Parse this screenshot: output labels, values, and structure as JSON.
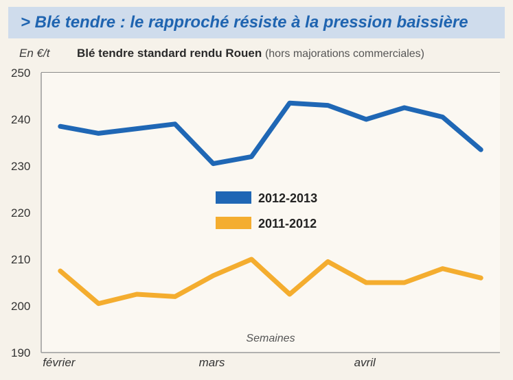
{
  "header": {
    "title": "> Blé tendre : le rapproché résiste à la pression baissière"
  },
  "unit": "En €/t",
  "subtitle_main": "Blé tendre standard rendu Rouen",
  "subtitle_note": "(hors majorations commerciales)",
  "chart_data": {
    "type": "line",
    "title": "Blé tendre standard rendu Rouen",
    "ylabel": "En €/t",
    "xlabel": "Semaines",
    "ylim": [
      190,
      250
    ],
    "yticks": [
      250,
      240,
      230,
      220,
      210,
      200,
      190
    ],
    "x": [
      1,
      2,
      3,
      4,
      5,
      6,
      7,
      8,
      9,
      10,
      11,
      12
    ],
    "xlim": [
      0.5,
      12.5
    ],
    "month_labels": [
      {
        "label": "février",
        "x": 1
      },
      {
        "label": "mars",
        "x": 5
      },
      {
        "label": "avril",
        "x": 9
      }
    ],
    "grid": true,
    "legend_position": "center",
    "series": [
      {
        "name": "2012-2013",
        "color": "#1f67b5",
        "values": [
          238.5,
          237,
          238,
          239,
          230.5,
          232,
          243.5,
          243,
          240,
          242.5,
          240.5,
          233.5
        ]
      },
      {
        "name": "2011-2012",
        "color": "#f4ad2f",
        "values": [
          207.5,
          200.5,
          202.5,
          202,
          206.5,
          210,
          202.5,
          209.5,
          205,
          205,
          208,
          206
        ]
      }
    ]
  }
}
